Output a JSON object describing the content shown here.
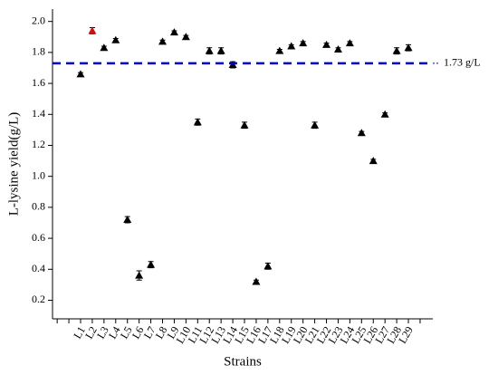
{
  "chart_data": {
    "type": "scatter",
    "x_label": "Strains",
    "y_label": "L-lysine yield(g/L)",
    "categories": [
      "L1",
      "L2",
      "L3",
      "L4",
      "L5",
      "L6",
      "L7",
      "L8",
      "L9",
      "L10",
      "L11",
      "L12",
      "L13",
      "L14",
      "L15",
      "L16",
      "L17",
      "L18",
      "L19",
      "L20",
      "L21",
      "L22",
      "L23",
      "L24",
      "L25",
      "L26",
      "L27",
      "L28",
      "L29"
    ],
    "values": [
      1.66,
      1.94,
      1.83,
      1.88,
      0.72,
      0.36,
      0.43,
      1.87,
      1.93,
      1.9,
      1.35,
      1.81,
      1.81,
      1.72,
      1.33,
      0.32,
      0.42,
      1.81,
      1.84,
      1.86,
      1.33,
      1.85,
      1.82,
      1.86,
      1.28,
      1.1,
      1.4,
      1.81,
      1.83
    ],
    "errors": [
      0.01,
      0.02,
      0.01,
      0.01,
      0.02,
      0.03,
      0.02,
      0.01,
      0.01,
      0.01,
      0.02,
      0.02,
      0.02,
      0.02,
      0.02,
      0.01,
      0.02,
      0.01,
      0.01,
      0.01,
      0.02,
      0.01,
      0.01,
      0.01,
      0.01,
      0.01,
      0.01,
      0.02,
      0.02
    ],
    "point_colors": [
      "#000000",
      "#cc1111",
      "#000000",
      "#000000",
      "#000000",
      "#000000",
      "#000000",
      "#000000",
      "#000000",
      "#000000",
      "#000000",
      "#000000",
      "#000000",
      "#000000",
      "#000000",
      "#000000",
      "#000000",
      "#000000",
      "#000000",
      "#000000",
      "#000000",
      "#000000",
      "#000000",
      "#000000",
      "#000000",
      "#000000",
      "#000000",
      "#000000",
      "#000000"
    ],
    "ylim": [
      0.08,
      2.08
    ],
    "yticks": [
      0.2,
      0.4,
      0.6,
      0.8,
      {
        "value": 1,
        "label": "1.0"
      },
      1.2,
      1.4,
      1.6,
      1.8,
      {
        "value": 2,
        "label": "2.0"
      }
    ],
    "reference_line": {
      "value": 1.73,
      "label": "1.73 g/L",
      "color": "#0000cc"
    }
  }
}
